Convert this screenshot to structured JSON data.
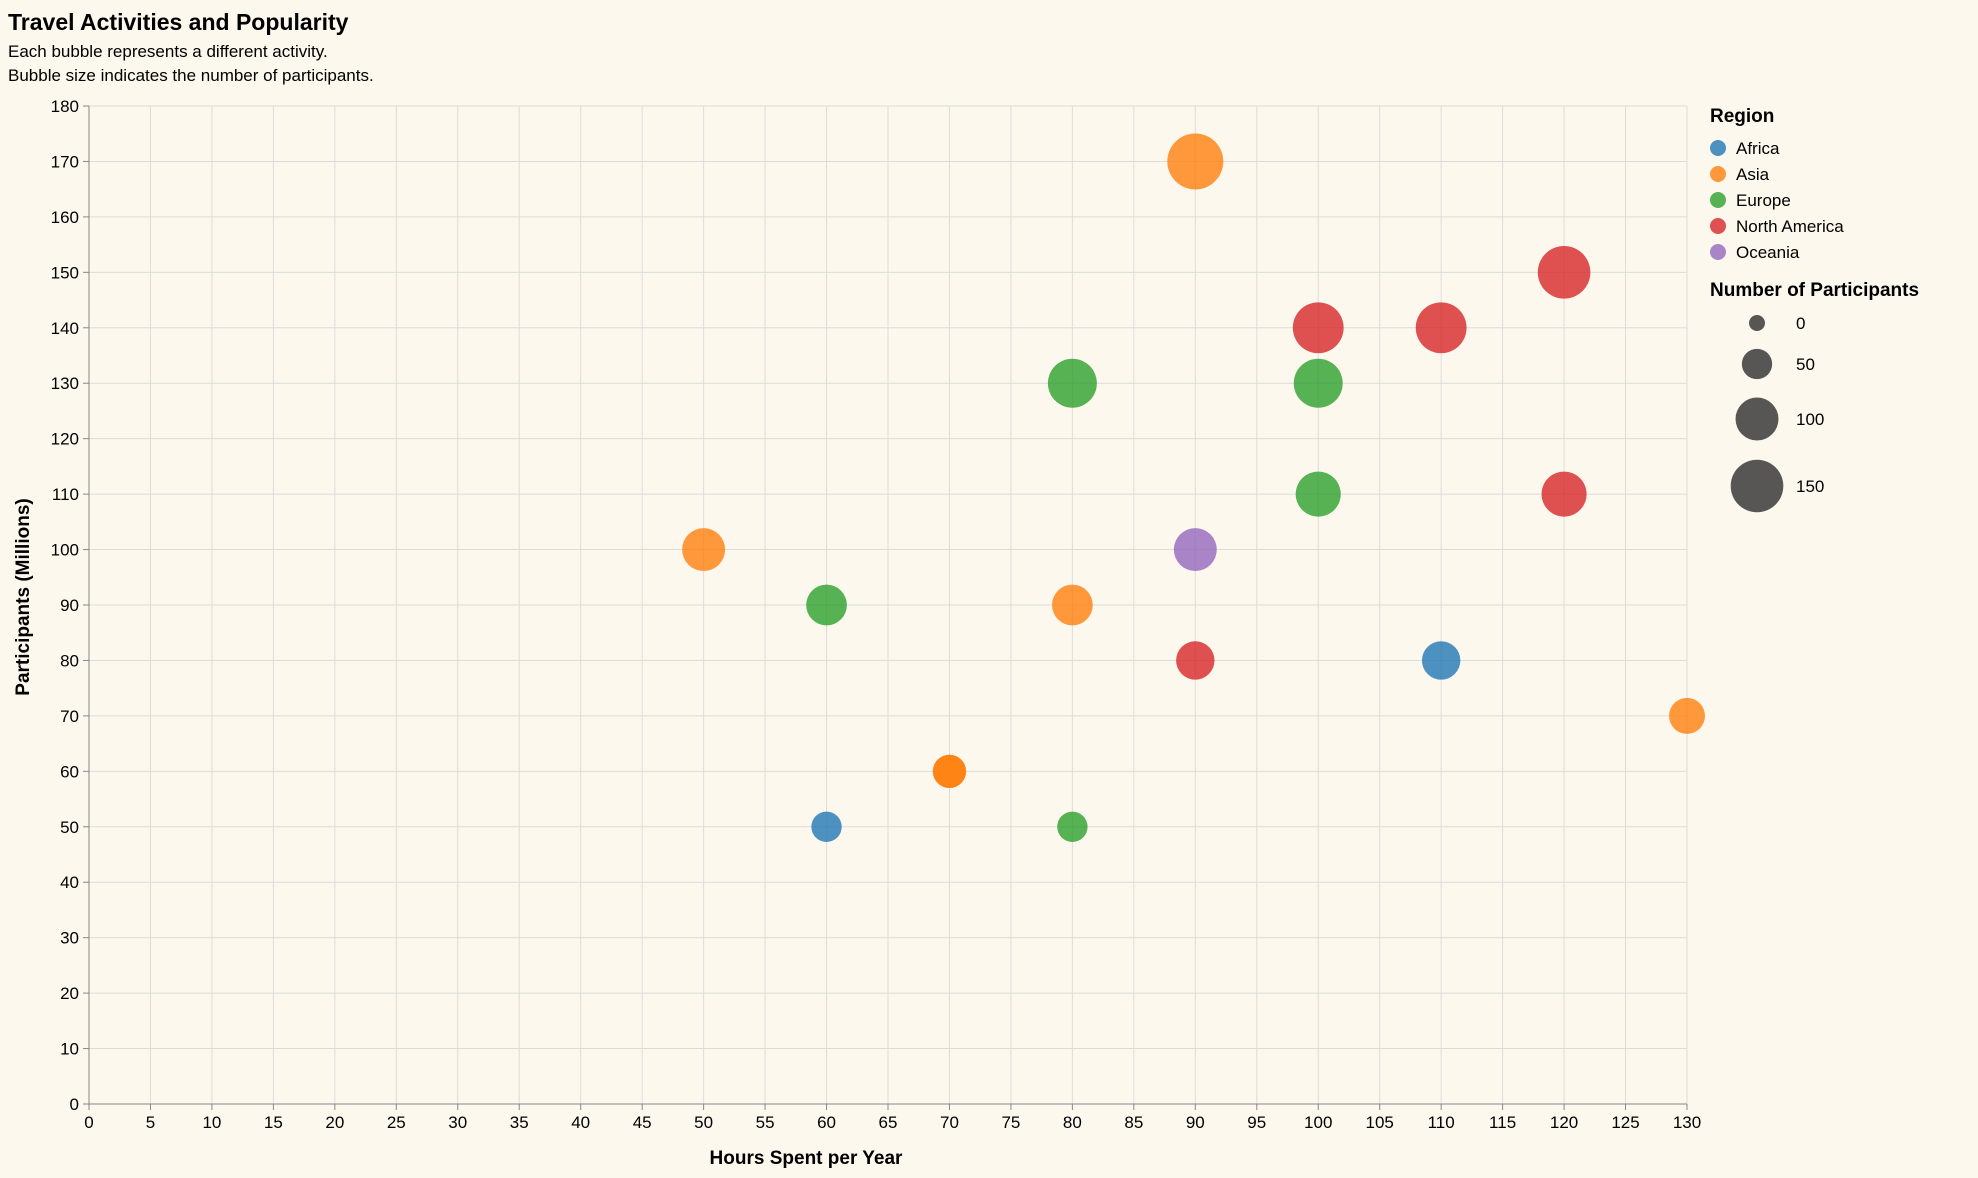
{
  "chart_data": {
    "type": "scatter",
    "title": "Travel Activities and Popularity",
    "subtitle": [
      "Each bubble represents a different activity.",
      "Bubble size indicates the number of participants."
    ],
    "xlabel": "Hours Spent per Year",
    "ylabel": "Participants (Millions)",
    "xlim": [
      0,
      130
    ],
    "ylim": [
      0,
      180
    ],
    "x_ticks": [
      0,
      5,
      10,
      15,
      20,
      25,
      30,
      35,
      40,
      45,
      50,
      55,
      60,
      65,
      70,
      75,
      80,
      85,
      90,
      95,
      100,
      105,
      110,
      115,
      120,
      125,
      130
    ],
    "y_ticks": [
      0,
      10,
      20,
      30,
      40,
      50,
      60,
      70,
      80,
      90,
      100,
      110,
      120,
      130,
      140,
      150,
      160,
      170,
      180
    ],
    "grid": true,
    "legend_position": "right",
    "color_legend": {
      "title": "Region",
      "items": [
        {
          "name": "Africa",
          "color": "#1f77b4"
        },
        {
          "name": "Asia",
          "color": "#ff7f0e"
        },
        {
          "name": "Europe",
          "color": "#2ca02c"
        },
        {
          "name": "North America",
          "color": "#d62728"
        },
        {
          "name": "Oceania",
          "color": "#9467bd"
        }
      ]
    },
    "size_legend": {
      "title": "Number of Participants",
      "values": [
        0,
        50,
        100,
        150
      ]
    },
    "points": [
      {
        "x": 90,
        "y": 170,
        "size": 170,
        "region": "Asia"
      },
      {
        "x": 120,
        "y": 150,
        "size": 150,
        "region": "North America"
      },
      {
        "x": 100,
        "y": 140,
        "size": 140,
        "region": "North America"
      },
      {
        "x": 110,
        "y": 140,
        "size": 140,
        "region": "North America"
      },
      {
        "x": 80,
        "y": 130,
        "size": 130,
        "region": "Europe"
      },
      {
        "x": 100,
        "y": 130,
        "size": 130,
        "region": "Europe"
      },
      {
        "x": 100,
        "y": 110,
        "size": 110,
        "region": "Europe"
      },
      {
        "x": 120,
        "y": 110,
        "size": 110,
        "region": "North America"
      },
      {
        "x": 50,
        "y": 100,
        "size": 100,
        "region": "Asia"
      },
      {
        "x": 90,
        "y": 100,
        "size": 100,
        "region": "Oceania"
      },
      {
        "x": 60,
        "y": 90,
        "size": 90,
        "region": "Europe"
      },
      {
        "x": 80,
        "y": 90,
        "size": 90,
        "region": "Asia"
      },
      {
        "x": 90,
        "y": 80,
        "size": 80,
        "region": "North America"
      },
      {
        "x": 110,
        "y": 80,
        "size": 80,
        "region": "Africa"
      },
      {
        "x": 130,
        "y": 70,
        "size": 70,
        "region": "Asia"
      },
      {
        "x": 70,
        "y": 60,
        "size": 60,
        "region": "Asia"
      },
      {
        "x": 70,
        "y": 60,
        "size": 60,
        "region": "Asia"
      },
      {
        "x": 60,
        "y": 50,
        "size": 50,
        "region": "Africa"
      },
      {
        "x": 80,
        "y": 50,
        "size": 50,
        "region": "Europe"
      }
    ]
  }
}
